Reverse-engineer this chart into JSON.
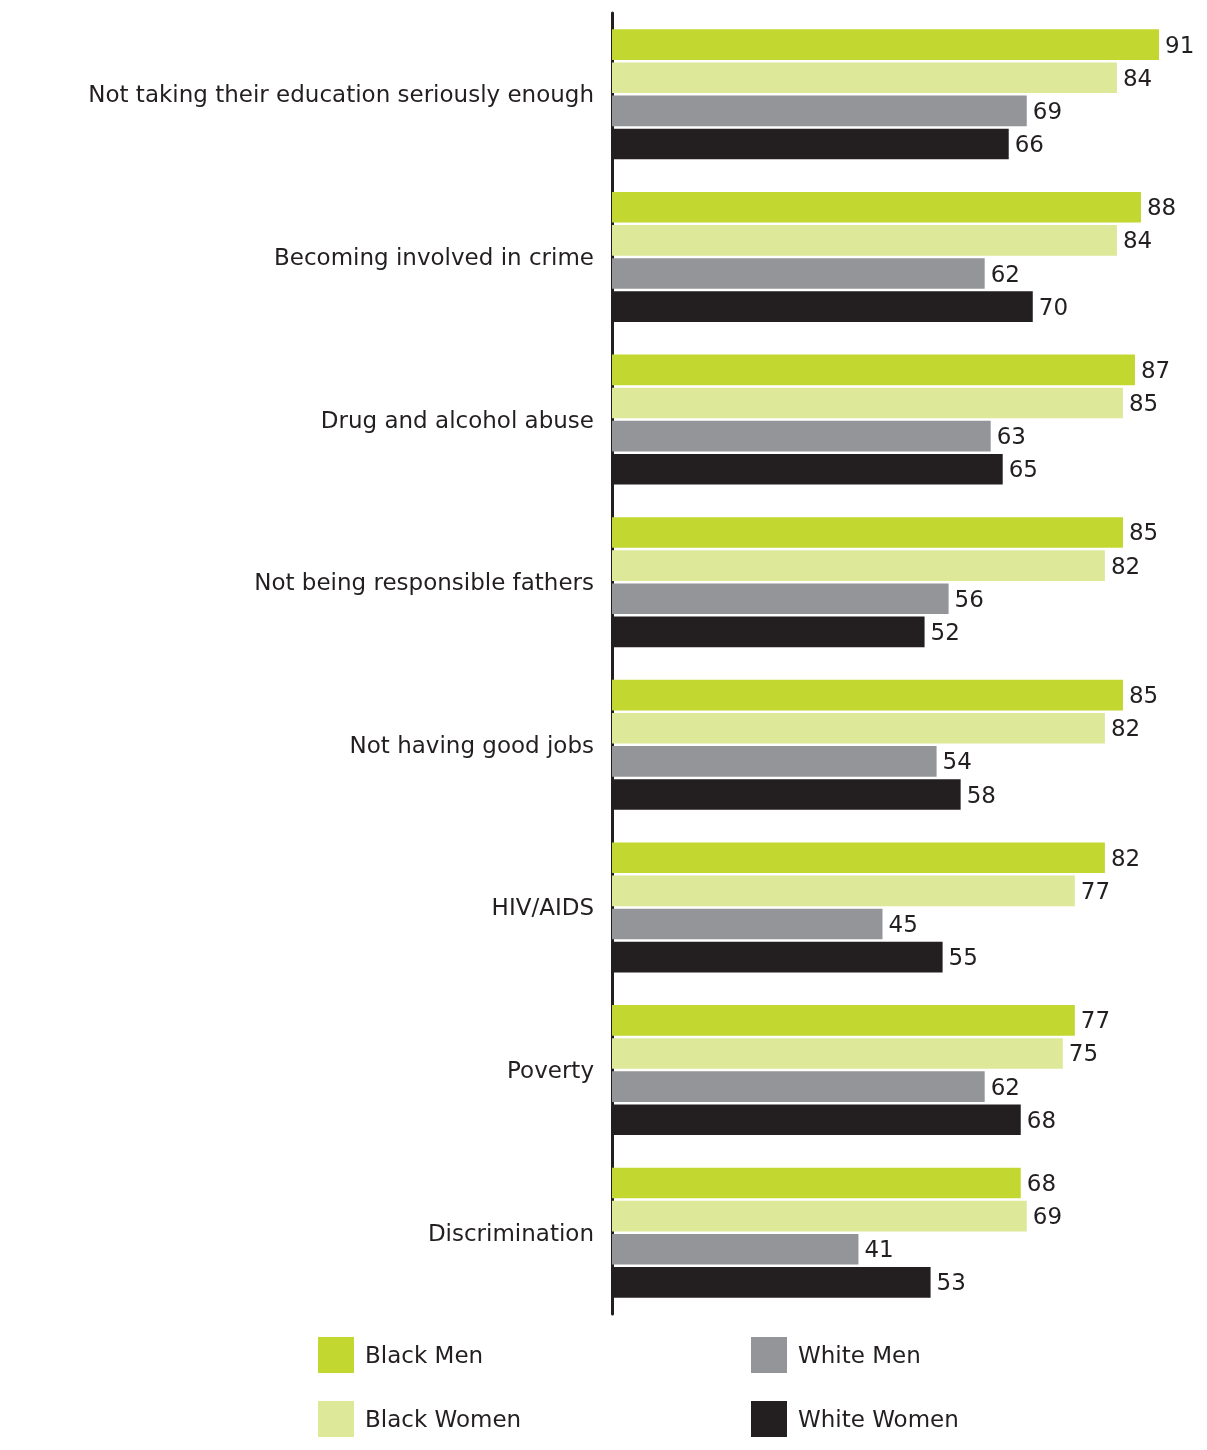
{
  "chart_data": {
    "type": "bar",
    "orientation": "horizontal",
    "data_labels": true,
    "legend": "bottom",
    "tick_labels": "y",
    "categories": [
      "Not taking their education seriously enough",
      "Becoming involved in crime",
      "Drug and alcohol abuse",
      "Not being responsible fathers",
      "Not having good jobs",
      "HIV/AIDS",
      "Poverty",
      "Discrimination"
    ],
    "series": [
      {
        "name": "Black Men",
        "color": "#c2d72f",
        "values": [
          91,
          88,
          87,
          85,
          85,
          82,
          77,
          68
        ]
      },
      {
        "name": "Black Women",
        "color": "#dde899",
        "values": [
          84,
          84,
          85,
          82,
          82,
          77,
          75,
          69
        ]
      },
      {
        "name": "White Men",
        "color": "#939598",
        "values": [
          69,
          62,
          63,
          56,
          54,
          45,
          62,
          41
        ]
      },
      {
        "name": "White Women",
        "color": "#231f20",
        "values": [
          66,
          70,
          65,
          52,
          58,
          55,
          68,
          53
        ]
      }
    ]
  }
}
